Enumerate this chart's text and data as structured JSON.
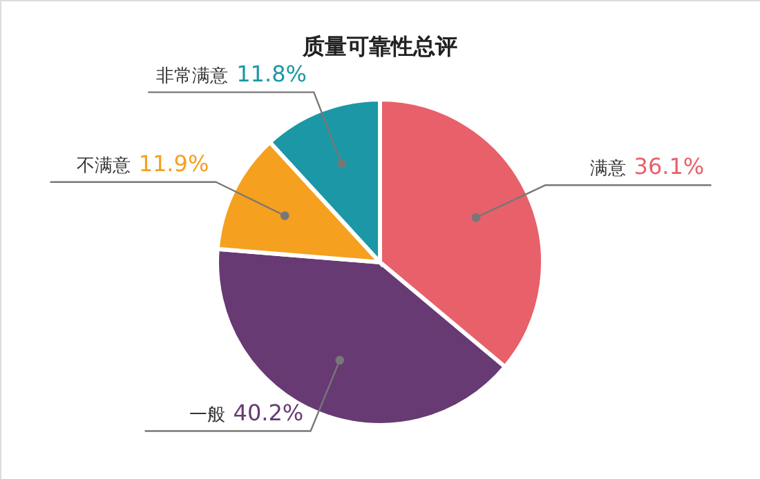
{
  "chart_data": {
    "type": "pie",
    "title": "质量可靠性总评",
    "categories": [
      "满意",
      "一般",
      "不满意",
      "非常满意"
    ],
    "values": [
      36.1,
      40.2,
      11.9,
      11.8
    ],
    "colors": [
      "#e8606a",
      "#673a73",
      "#f5a01e",
      "#1b97a5"
    ],
    "value_labels": [
      "36.1%",
      "40.2%",
      "11.9%",
      "11.8%"
    ]
  }
}
